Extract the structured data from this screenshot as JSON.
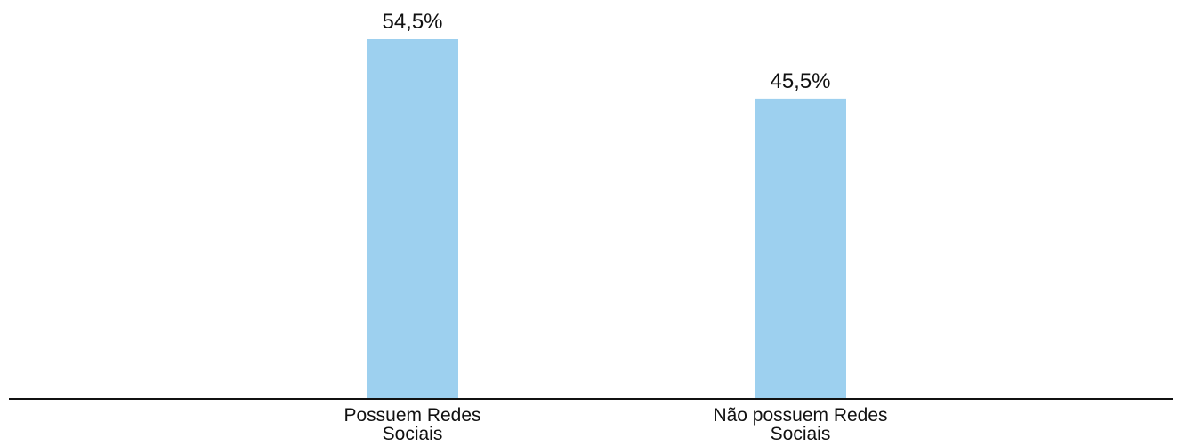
{
  "chart_data": {
    "type": "bar",
    "categories": [
      "Possuem Redes Sociais",
      "Não possuem Redes Sociais"
    ],
    "values": [
      54.5,
      45.5
    ],
    "value_labels": [
      "54,5%",
      "45,5%"
    ],
    "color": "#9dd0ef"
  }
}
